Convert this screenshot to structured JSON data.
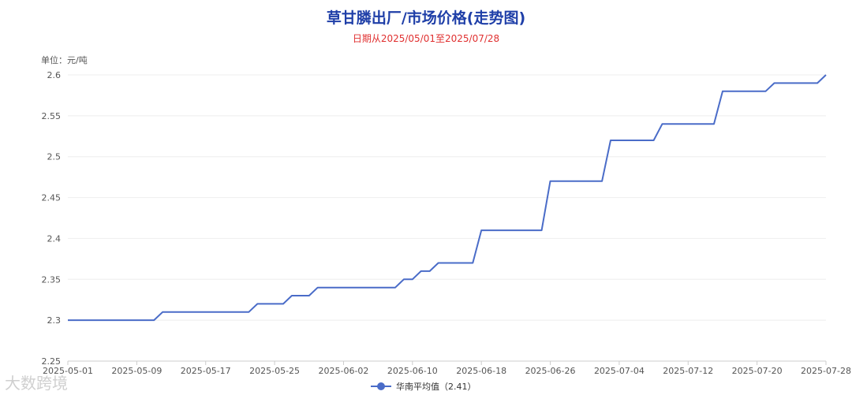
{
  "chart_data": {
    "type": "line",
    "title": "草甘膦出厂/市场价格(走势图)",
    "subtitle": "日期从2025/05/01至2025/07/28",
    "unit_label": "单位：元/吨",
    "watermark": "大数跨境",
    "ylim": [
      2.25,
      2.6
    ],
    "y_ticks": [
      "2.6",
      "2.55",
      "2.5",
      "2.45",
      "2.4",
      "2.35",
      "2.3",
      "2.25"
    ],
    "x_ticks": [
      "2025-05-01",
      "2025-05-09",
      "2025-05-17",
      "2025-05-25",
      "2025-06-02",
      "2025-06-10",
      "2025-06-18",
      "2025-06-26",
      "2025-07-04",
      "2025-07-12",
      "2025-07-20",
      "2025-07-28"
    ],
    "legend_placement": "bottom-center",
    "grid": true,
    "color": "#4a6cc8",
    "series": [
      {
        "name": "华南平均值",
        "legend_label": "华南平均值（2.41）",
        "points": [
          [
            "2025-05-01",
            2.3
          ],
          [
            "2025-05-11",
            2.3
          ],
          [
            "2025-05-12",
            2.31
          ],
          [
            "2025-05-22",
            2.31
          ],
          [
            "2025-05-23",
            2.32
          ],
          [
            "2025-05-26",
            2.32
          ],
          [
            "2025-05-27",
            2.33
          ],
          [
            "2025-05-29",
            2.33
          ],
          [
            "2025-05-30",
            2.34
          ],
          [
            "2025-06-08",
            2.34
          ],
          [
            "2025-06-09",
            2.35
          ],
          [
            "2025-06-10",
            2.35
          ],
          [
            "2025-06-11",
            2.36
          ],
          [
            "2025-06-12",
            2.36
          ],
          [
            "2025-06-13",
            2.37
          ],
          [
            "2025-06-17",
            2.37
          ],
          [
            "2025-06-18",
            2.41
          ],
          [
            "2025-06-25",
            2.41
          ],
          [
            "2025-06-26",
            2.47
          ],
          [
            "2025-07-02",
            2.47
          ],
          [
            "2025-07-03",
            2.52
          ],
          [
            "2025-07-08",
            2.52
          ],
          [
            "2025-07-09",
            2.54
          ],
          [
            "2025-07-15",
            2.54
          ],
          [
            "2025-07-16",
            2.58
          ],
          [
            "2025-07-21",
            2.58
          ],
          [
            "2025-07-22",
            2.59
          ],
          [
            "2025-07-27",
            2.59
          ],
          [
            "2025-07-28",
            2.6
          ]
        ]
      }
    ]
  }
}
